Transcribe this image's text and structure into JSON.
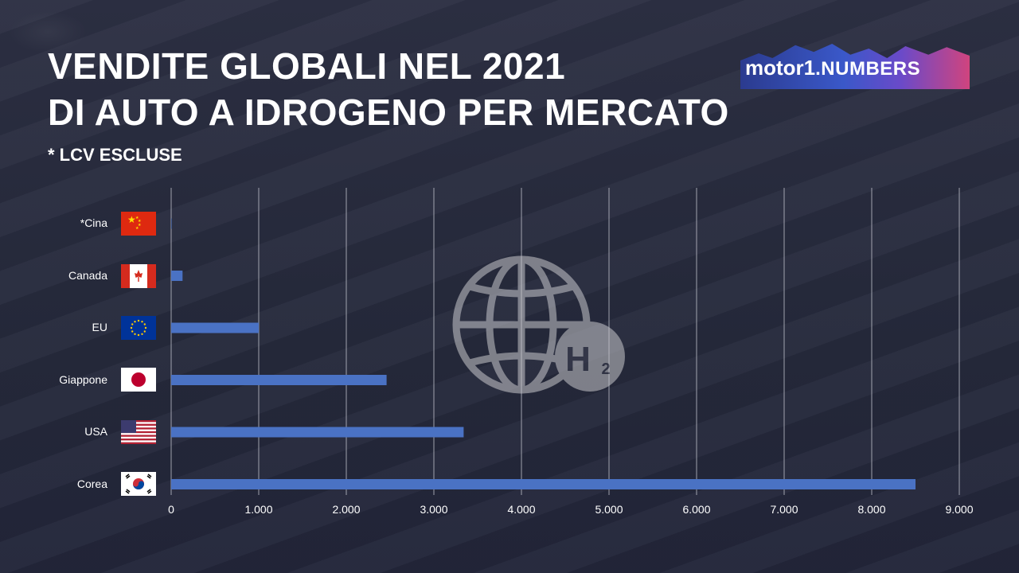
{
  "header": {
    "title_line1": "VENDITE GLOBALI NEL 2021",
    "title_line2": "DI AUTO A IDROGENO PER MERCATO",
    "subtitle": "* LCV ESCLUSE"
  },
  "logo": {
    "brand": "motor",
    "one": "1",
    "suffix": ".NUMBERS"
  },
  "watermark": {
    "text": "H",
    "sub": "2",
    "icon": "globe-hydrogen-icon"
  },
  "colors": {
    "bar": "#4a72c4",
    "grid": "#c9cbd4",
    "text": "#ffffff"
  },
  "chart_data": {
    "type": "bar",
    "orientation": "horizontal",
    "categories": [
      "*Cina",
      "Canada",
      "EU",
      "Giappone",
      "USA",
      "Corea"
    ],
    "values": [
      5,
      130,
      1000,
      2460,
      3340,
      8500
    ],
    "xlim": [
      0,
      9000
    ],
    "x_ticks": [
      "0",
      "1.000",
      "2.000",
      "3.000",
      "4.000",
      "5.000",
      "6.000",
      "7.000",
      "8.000",
      "9.000"
    ],
    "grid": true,
    "xlabel": "",
    "ylabel": ""
  }
}
